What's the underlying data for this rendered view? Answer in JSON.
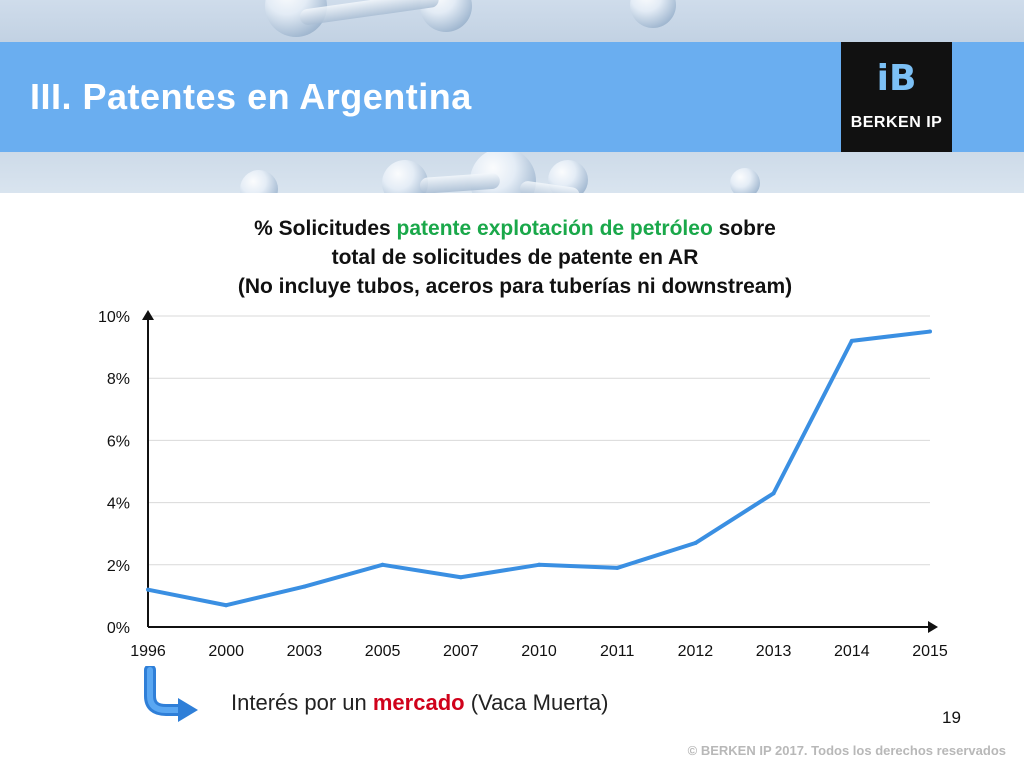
{
  "slide": {
    "title": "III. Patentes en Argentina",
    "logo_text": "BERKEN IP",
    "logo_mark": "iB",
    "page_number": "19",
    "copyright": "© BERKEN IP 2017. Todos los derechos reservados"
  },
  "chart_title": {
    "line1_a": "% Solicitudes ",
    "line1_highlight": "patente explotación de petróleo",
    "line1_b": " sobre",
    "line2": "total de solicitudes de patente en AR",
    "line3": "(No incluye tubos, aceros para tuberías ni downstream)"
  },
  "note": {
    "before": "Interés por un ",
    "highlight": "mercado",
    "after": " (Vaca Muerta)"
  },
  "colors": {
    "line": "#3a8fe2",
    "highlight_green": "#1aa84a",
    "highlight_red": "#d0021b",
    "title_bar": "#6aaef0"
  },
  "chart_data": {
    "type": "line",
    "categories": [
      "1996",
      "2000",
      "2003",
      "2005",
      "2007",
      "2010",
      "2011",
      "2012",
      "2013",
      "2014",
      "2015"
    ],
    "series": [
      {
        "values": [
          1.2,
          0.7,
          1.3,
          2.0,
          1.6,
          2.0,
          1.9,
          2.7,
          4.3,
          9.2,
          9.5
        ]
      }
    ],
    "yticks": [
      "0%",
      "2%",
      "4%",
      "6%",
      "8%",
      "10%"
    ],
    "ylim": [
      0,
      10
    ],
    "grid": true
  }
}
